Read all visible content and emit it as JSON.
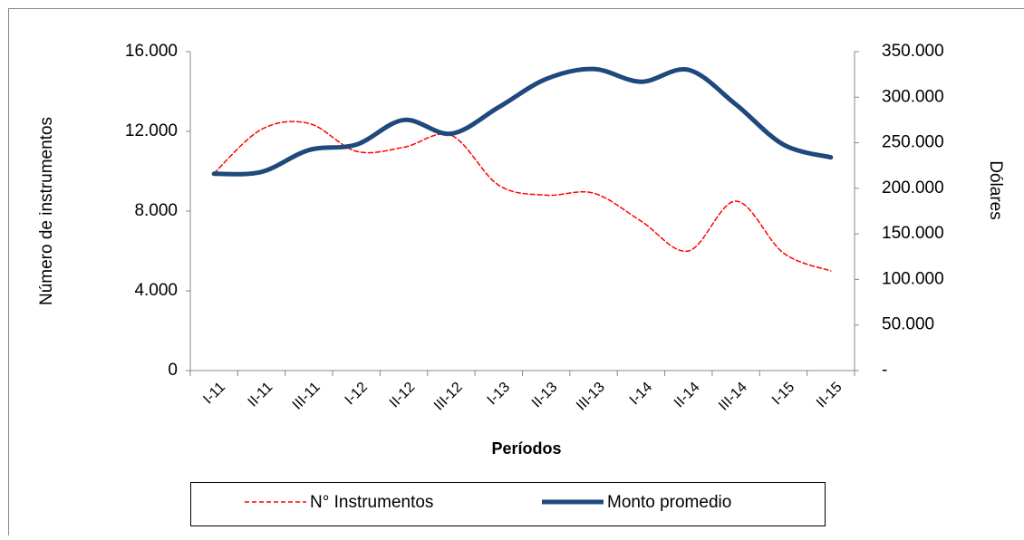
{
  "chart_data": {
    "type": "line",
    "x_label": "Períodos",
    "y_label": "Número de instrumentos",
    "y2_label": "Dólares",
    "categories": [
      "I-11",
      "II-11",
      "III-11",
      "I-12",
      "II-12",
      "III-12",
      "I-13",
      "II-13",
      "III-13",
      "I-14",
      "II-14",
      "III-14",
      "I-15",
      "II-15"
    ],
    "ylim": [
      0,
      16000
    ],
    "yticks": [
      0,
      {
        "value": 4000,
        "label": "4.000"
      },
      {
        "value": 8000,
        "label": "8.000"
      },
      {
        "value": 12000,
        "label": "12.000"
      },
      {
        "value": 16000,
        "label": "16.000"
      }
    ],
    "y2lim": [
      0,
      350000
    ],
    "y2ticks": [
      {
        "value": 0,
        "label": "-"
      },
      {
        "value": 50000,
        "label": "50.000"
      },
      {
        "value": 100000,
        "label": "100.000"
      },
      {
        "value": 150000,
        "label": "150.000"
      },
      {
        "value": 200000,
        "label": "200.000"
      },
      {
        "value": 250000,
        "label": "250.000"
      },
      {
        "value": 300000,
        "label": "300.000"
      },
      {
        "value": 350000,
        "label": "350.000"
      }
    ],
    "legend": "bottom",
    "series": [
      {
        "name": "N° Instrumentos",
        "color": "#ff0000",
        "dashed": true,
        "values": [
          9900,
          12100,
          12400,
          11000,
          11200,
          11800,
          9300,
          8800,
          8900,
          7500,
          6000,
          8500,
          5900,
          5000
        ]
      },
      {
        "name": "Monto promedio",
        "color": "#1f497d",
        "axis": "y2",
        "values": [
          216000,
          218000,
          242000,
          248000,
          275000,
          260000,
          289000,
          320000,
          331000,
          317000,
          330000,
          292000,
          248000,
          234000
        ]
      }
    ]
  }
}
